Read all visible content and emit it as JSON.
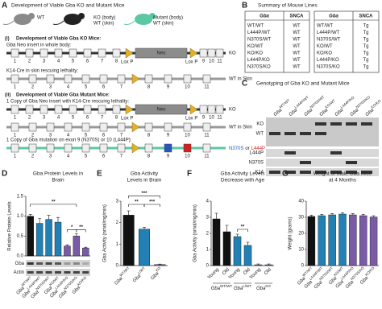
{
  "panel_a": {
    "label": "A",
    "title": "Development of Viable Gba KO and Mutant Mice",
    "mice": [
      [
        "WT"
      ],
      [
        "KO (body)",
        "WT (skin)"
      ],
      [
        "Mutant (body)",
        "WT (skin)"
      ]
    ],
    "section_i": {
      "heading": "(i)",
      "text": "Development of Viable Gba KO Mice:",
      "rows": [
        {
          "caption": "Gba Neo insert in whole body:",
          "label": "KO"
        },
        {
          "caption": "K14-Cre in skin rescuing lethality:",
          "label": "WT in Skin"
        }
      ]
    },
    "section_ii": {
      "heading": "(ii)",
      "text": "Development of Viable Gba Mutant Mice:",
      "rows": [
        {
          "caption": "1 Copy of Gba Neo insert with K14-Cre rescuing lethality:",
          "label": "KO"
        },
        {
          "label": "WT in Skin"
        },
        {
          "caption": "1 Copy of Gba mutation on exon 9 (N370S) or 10 (L444P):",
          "label_parts": [
            "N370S",
            "or",
            "L444P"
          ]
        }
      ]
    },
    "neo": "Neo",
    "lox_p": "Lox P",
    "exons": [
      1,
      2,
      3,
      4,
      5,
      6,
      7,
      8,
      9,
      10,
      11
    ]
  },
  "panel_b": {
    "label": "B",
    "title": "Summary of Mouse Lines",
    "tables": [
      {
        "header": [
          "Gba",
          "SNCA"
        ],
        "rows": [
          [
            "WT/WT",
            "WT"
          ],
          [
            "L444P/WT",
            "WT"
          ],
          [
            "N370S/WT",
            "WT"
          ],
          [
            "KO/WT",
            "WT"
          ],
          [
            "KO/KO",
            "WT"
          ],
          [
            "L444P/KO",
            "WT"
          ],
          [
            "N370S/KO",
            "WT"
          ]
        ]
      },
      {
        "header": [
          "Gba",
          "SNCA"
        ],
        "rows": [
          [
            "WT/WT",
            "Tg"
          ],
          [
            "L444P/WT",
            "Tg"
          ],
          [
            "N370S/WT",
            "Tg"
          ],
          [
            "KO/WT",
            "Tg"
          ],
          [
            "KO/KO",
            "Tg"
          ],
          [
            "L444P/KO",
            "Tg"
          ],
          [
            "N370S/KO",
            "Tg"
          ]
        ]
      }
    ]
  },
  "panel_c": {
    "label": "C",
    "title": "Genotyping of Gba KO and Mutant Mice",
    "lanes": [
      {
        "base": "Gba",
        "sup": "WT/WT"
      },
      {
        "base": "Gba",
        "sup": "L444P/WT"
      },
      {
        "base": "Gba",
        "sup": "N370S/WT"
      },
      {
        "base": "Gba",
        "sup": "KO/WT"
      },
      {
        "base": "Gba",
        "sup": "L444P/KO"
      },
      {
        "base": "Gba",
        "sup": "N370S/KO"
      },
      {
        "base": "Gba",
        "sup": "KO/KO"
      }
    ],
    "bands": [
      "KO",
      "WT",
      "L444P",
      "N370S",
      "K14"
    ]
  },
  "panel_d": {
    "label": "D",
    "type": "bar",
    "title": [
      "Gba Protein Levels in",
      "Brain"
    ],
    "ylabel": "Relative Protein Levels",
    "categories": [
      {
        "base": "Gba",
        "sup": "WT/WT"
      },
      {
        "base": "Gba",
        "sup": "L444P/WT"
      },
      {
        "base": "Gba",
        "sup": "N370S/WT"
      },
      {
        "base": "Gba",
        "sup": "KO/WT"
      },
      {
        "base": "Gba",
        "sup": "L444P/KO"
      },
      {
        "base": "Gba",
        "sup": "N370S/KO"
      },
      {
        "base": "Gba",
        "sup": "KO/KO"
      }
    ],
    "values": [
      1.0,
      0.82,
      0.92,
      0.85,
      0.25,
      0.5,
      0.2
    ],
    "errors": [
      0.04,
      0.12,
      0.1,
      0.12,
      0.03,
      0.06,
      0.02
    ],
    "colors": [
      "#111111",
      "#2280b4",
      "#2280b4",
      "#2280b4",
      "#7b5aa6",
      "#7b5aa6",
      "#7b5aa6"
    ],
    "ylim": [
      0,
      1.5
    ],
    "yticks": [
      {
        "value": 0,
        "label": "0.0"
      },
      {
        "value": 0.5,
        "label": "0.5"
      },
      {
        "value": 1,
        "label": "1.0"
      },
      {
        "value": 1.5,
        "label": "1.5"
      }
    ],
    "annotations": [
      "**",
      "*",
      "**"
    ],
    "blot": [
      "Gba",
      "Actin"
    ]
  },
  "panel_e": {
    "label": "E",
    "type": "bar",
    "title": [
      "Gba Activity",
      "Levels in Brain"
    ],
    "ylabel": "Gba Activity (nmol/mg/min)",
    "categories": [
      {
        "base": "Gba",
        "sup": "WT/WT"
      },
      {
        "base": "Gba",
        "sup": "L/WT"
      },
      {
        "base": "Gba",
        "sup": "KO"
      }
    ],
    "values": [
      2.35,
      1.7,
      0.05
    ],
    "errors": [
      0.2,
      0.08,
      0.02
    ],
    "colors": [
      "#111111",
      "#2280b4",
      "#7b5aa6"
    ],
    "ylim": [
      0,
      3
    ],
    "yticks": [
      0,
      1,
      2,
      3
    ],
    "annotations": [
      "**",
      "***",
      "***"
    ]
  },
  "panel_f": {
    "label": "F",
    "type": "bar",
    "title": [
      "Gba Activity Levels",
      "Decrease with Age"
    ],
    "ylabel": "Gba Activity (nmol/mg/min)",
    "categories": [
      "Young",
      "Old",
      "Young",
      "Old",
      "Young",
      "Old"
    ],
    "groups": [
      {
        "base": "Gba",
        "sup": "WT/WT"
      },
      {
        "base": "Gba",
        "sup": "L/WT"
      },
      {
        "base": "Gba",
        "sup": "KO"
      }
    ],
    "values": [
      2.9,
      2.1,
      1.8,
      1.25,
      0.05,
      0.05
    ],
    "errors": [
      0.35,
      0.4,
      0.15,
      0.2,
      0.05,
      0.05
    ],
    "colors": [
      "#111111",
      "#111111",
      "#2280b4",
      "#2280b4",
      "#7b5aa6",
      "#7b5aa6"
    ],
    "ylim": [
      0,
      4
    ],
    "yticks": [
      0,
      1,
      2,
      3,
      4
    ],
    "annotations": [
      "**"
    ]
  },
  "panel_g": {
    "label": "G",
    "type": "bar",
    "title": [
      "Weight of Male Gba Mice",
      "at 4 Months"
    ],
    "ylabel": "Weight (grams)",
    "categories": [
      {
        "base": "Gba",
        "sup": "WT/WT"
      },
      {
        "base": "Gba",
        "sup": "L444P/WT"
      },
      {
        "base": "Gba",
        "sup": "N370S/WT"
      },
      {
        "base": "Gba",
        "sup": "KO/WT"
      },
      {
        "base": "Gba",
        "sup": "L444P/KO"
      },
      {
        "base": "Gba",
        "sup": "N370S/KO"
      },
      {
        "base": "Gba",
        "sup": "KO/KO"
      }
    ],
    "values": [
      30.5,
      31,
      31.5,
      32,
      31.5,
      31,
      30.2
    ],
    "errors": [
      0.8,
      0.8,
      0.8,
      0.8,
      0.8,
      0.8,
      0.8
    ],
    "colors": [
      "#111111",
      "#2280b4",
      "#2280b4",
      "#2280b4",
      "#7b5aa6",
      "#7b5aa6",
      "#7b5aa6"
    ],
    "ylim": [
      0,
      40
    ],
    "yticks": [
      0,
      10,
      20,
      30,
      40
    ],
    "annotations": []
  }
}
